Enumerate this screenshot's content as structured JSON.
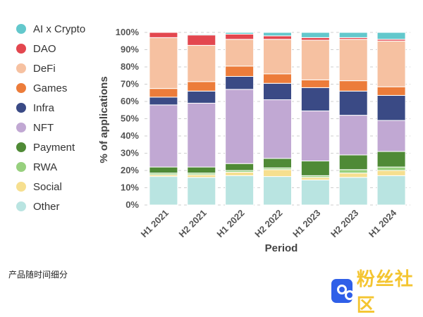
{
  "chart_data": {
    "type": "bar",
    "stacked": true,
    "title": "",
    "xlabel": "Period",
    "ylabel": "% of applications",
    "ylim": [
      0,
      100
    ],
    "yticks": [
      "0%",
      "10%",
      "20%",
      "30%",
      "40%",
      "50%",
      "60%",
      "70%",
      "80%",
      "90%",
      "100%"
    ],
    "grid": "horizontal dashed",
    "legend_position": "left",
    "categories": [
      "H1 2021",
      "H2 2021",
      "H1 2022",
      "H2 2022",
      "H1 2023",
      "H2 2023",
      "H1 2024"
    ],
    "series": [
      {
        "name": "Other",
        "color": "#b9e4e1",
        "values": [
          16.5,
          16.0,
          17.0,
          16.5,
          14.5,
          16.0,
          17.0
        ]
      },
      {
        "name": "Social",
        "color": "#f6df8f",
        "values": [
          1.0,
          1.5,
          2.0,
          4.0,
          1.5,
          2.5,
          3.0
        ]
      },
      {
        "name": "RWA",
        "color": "#97d07e",
        "values": [
          1.0,
          1.0,
          1.0,
          1.0,
          1.0,
          2.0,
          2.0
        ]
      },
      {
        "name": "Payment",
        "color": "#4f8a36",
        "values": [
          3.5,
          3.5,
          4.0,
          5.5,
          8.5,
          8.5,
          9.0
        ]
      },
      {
        "name": "NFT",
        "color": "#c1a8d3",
        "values": [
          36.0,
          37.0,
          43.0,
          34.0,
          29.0,
          23.0,
          18.0
        ]
      },
      {
        "name": "Infra",
        "color": "#3a4a85",
        "values": [
          4.5,
          7.0,
          7.5,
          9.5,
          13.5,
          14.0,
          14.5
        ]
      },
      {
        "name": "Games",
        "color": "#ec7c3a",
        "values": [
          5.0,
          5.5,
          6.0,
          5.5,
          4.5,
          6.0,
          5.0
        ]
      },
      {
        "name": "DeFi",
        "color": "#f6c1a1",
        "values": [
          29.5,
          21.0,
          15.5,
          20.0,
          23.0,
          24.0,
          26.5
        ]
      },
      {
        "name": "DAO",
        "color": "#e3474f",
        "values": [
          3.0,
          6.0,
          3.0,
          2.0,
          1.5,
          1.0,
          1.0
        ]
      },
      {
        "name": "AI x Crypto",
        "color": "#63c8cc",
        "values": [
          0.0,
          0.5,
          1.0,
          2.0,
          3.0,
          3.0,
          4.0
        ]
      }
    ]
  },
  "legend_order": [
    "AI x Crypto",
    "DAO",
    "DeFi",
    "Games",
    "Infra",
    "NFT",
    "Payment",
    "RWA",
    "Social",
    "Other"
  ],
  "caption": "产品随时间细分",
  "watermark": {
    "text": "粉丝社区",
    "icon": "app-logo-icon",
    "color": "#f4c531",
    "logo_color": "#2f5fe8"
  }
}
